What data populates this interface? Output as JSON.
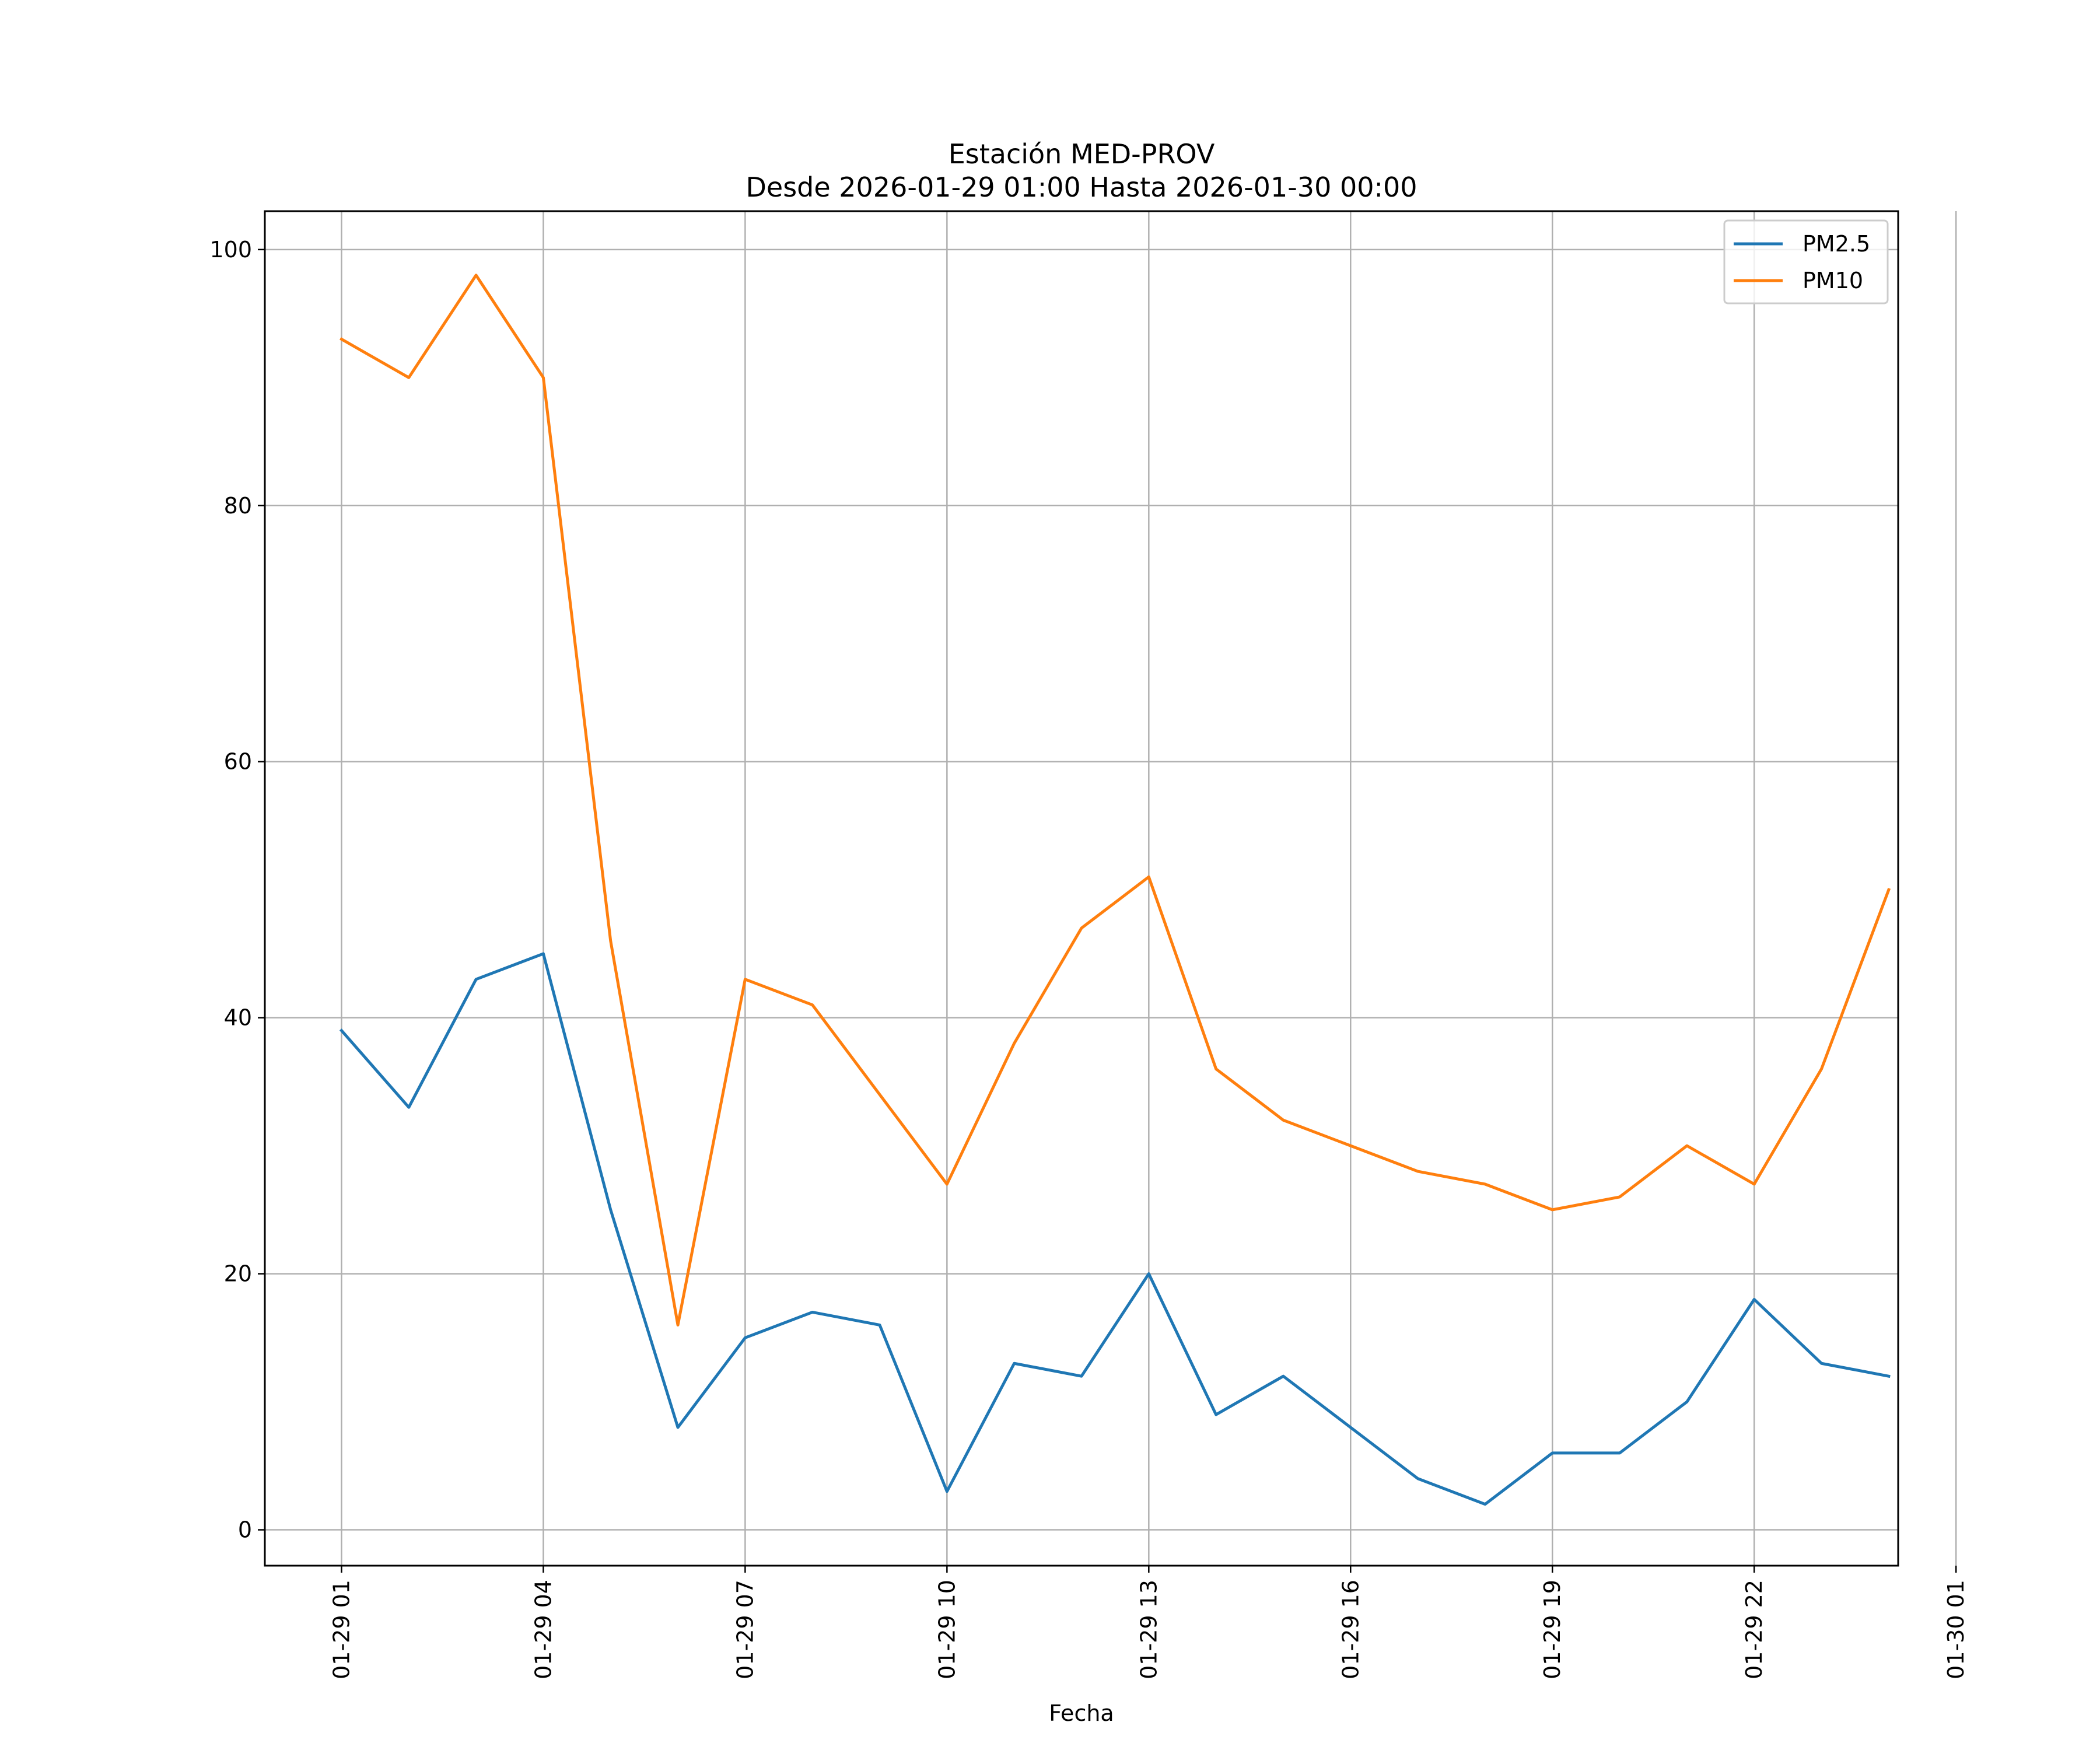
{
  "chart_data": {
    "type": "line",
    "title": "Estación MED-PROV",
    "subtitle": "Desde 2026-01-29 01:00 Hasta 2026-01-30 00:00",
    "xlabel": "Fecha",
    "ylabel": "",
    "x_hours": [
      0,
      1,
      2,
      3,
      4,
      5,
      6,
      7,
      8,
      9,
      10,
      11,
      12,
      13,
      14,
      15,
      16,
      17,
      18,
      19,
      20,
      21,
      22,
      23
    ],
    "xlim_hours": [
      -1.14,
      23.14
    ],
    "ylim": [
      -2.8,
      103
    ],
    "x_ticks": [
      {
        "hour": 0,
        "label": "01-29 01"
      },
      {
        "hour": 3,
        "label": "01-29 04"
      },
      {
        "hour": 6,
        "label": "01-29 07"
      },
      {
        "hour": 9,
        "label": "01-29 10"
      },
      {
        "hour": 12,
        "label": "01-29 13"
      },
      {
        "hour": 15,
        "label": "01-29 16"
      },
      {
        "hour": 18,
        "label": "01-29 19"
      },
      {
        "hour": 21,
        "label": "01-29 22"
      },
      {
        "hour": 24,
        "label": "01-30 01"
      }
    ],
    "y_ticks": [
      {
        "value": 0,
        "label": "0"
      },
      {
        "value": 20,
        "label": "20"
      },
      {
        "value": 40,
        "label": "40"
      },
      {
        "value": 60,
        "label": "60"
      },
      {
        "value": 80,
        "label": "80"
      },
      {
        "value": 100,
        "label": "100"
      }
    ],
    "grid": true,
    "legend_position": "top-right",
    "series": [
      {
        "name": "PM2.5",
        "color": "#1f77b4",
        "values": [
          39,
          33,
          43,
          45,
          25,
          8,
          15,
          17,
          16,
          3,
          13,
          12,
          20,
          9,
          12,
          8,
          4,
          2,
          6,
          6,
          10,
          18,
          13,
          12
        ]
      },
      {
        "name": "PM10",
        "color": "#ff7f0e",
        "values": [
          93,
          90,
          98,
          90,
          46,
          16,
          43,
          41,
          34,
          27,
          38,
          47,
          51,
          36,
          32,
          30,
          28,
          27,
          25,
          26,
          30,
          27,
          36,
          50
        ]
      }
    ]
  }
}
